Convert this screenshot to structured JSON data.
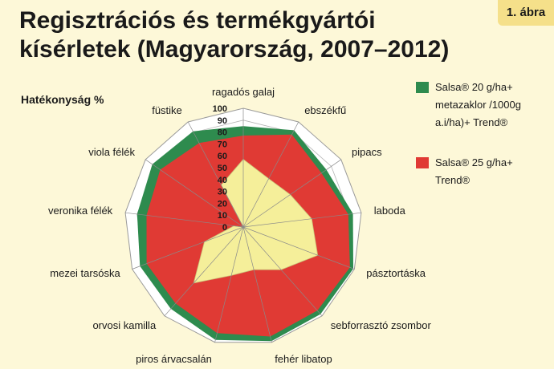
{
  "badge": "1. ábra",
  "title_lines": [
    "Regisztrációs és termékgyártói",
    "kísérletek (Magyarország, 2007–2012)"
  ],
  "chart_data": {
    "type": "radar",
    "ylabel": "Hatékonyság %",
    "rlim": [
      0,
      100
    ],
    "ticks": [
      0,
      10,
      20,
      30,
      40,
      50,
      60,
      70,
      80,
      90,
      100
    ],
    "categories": [
      "ragadós galaj",
      "ebszékfű",
      "pipacs",
      "laboda",
      "pásztortáska",
      "sebforrasztó zsombor",
      "fehér libatop",
      "piros árvacsalán",
      "orvosi kamilla",
      "mezei tarsóska",
      "veronika félék",
      "viola félék",
      "füstike"
    ],
    "series": [
      {
        "name": "Salsa® 20 g/ha+ metazaklor /1000g a.i/ha)+ Trend®",
        "color": "#2e8b4e",
        "values": [
          85,
          92,
          85,
          93,
          99,
          98,
          99,
          98,
          92,
          93,
          90,
          93,
          91
        ]
      },
      {
        "name": "Salsa® 25 g/ha+ Trend®",
        "color": "#e03a34",
        "values": [
          77,
          88,
          80,
          89,
          96,
          94,
          95,
          92,
          86,
          87,
          82,
          85,
          80
        ]
      },
      {
        "name": "",
        "color": "#f5ef9a",
        "values": [
          57,
          46,
          48,
          58,
          67,
          48,
          37,
          42,
          63,
          35,
          8,
          0,
          40
        ]
      }
    ],
    "grid": true
  },
  "legend": [
    {
      "lines": [
        "Salsa® 20 g/ha+",
        "metazaklor /1000g",
        "a.i/ha)+ Trend®"
      ],
      "color": "#2e8b4e"
    },
    {
      "lines": [
        "Salsa® 25 g/ha+",
        "Trend®"
      ],
      "color": "#e03a34"
    }
  ]
}
